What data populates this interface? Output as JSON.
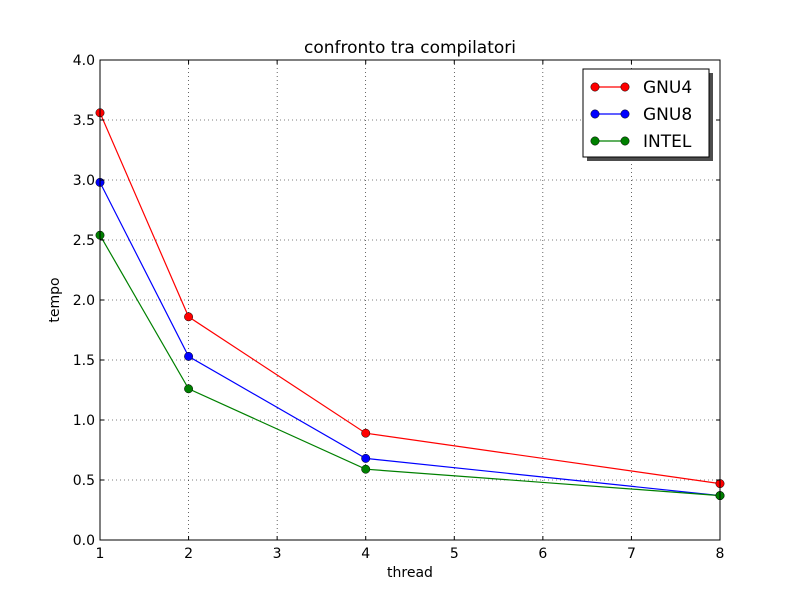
{
  "chart_data": {
    "type": "line",
    "title": "confronto tra compilatori",
    "xlabel": "thread",
    "ylabel": "tempo",
    "xlim": [
      1,
      8
    ],
    "ylim": [
      0,
      4
    ],
    "xticks": [
      1,
      2,
      3,
      4,
      5,
      6,
      7,
      8
    ],
    "xtick_labels": [
      "1",
      "2",
      "3",
      "4",
      "5",
      "6",
      "7",
      "8"
    ],
    "yticks": [
      0,
      0.5,
      1,
      1.5,
      2,
      2.5,
      3,
      3.5,
      4
    ],
    "ytick_labels": [
      "0.0",
      "0.5",
      "1.0",
      "1.5",
      "2.0",
      "2.5",
      "3.0",
      "3.5",
      "4.0"
    ],
    "grid": true,
    "legend_position": "top-right",
    "series": [
      {
        "name": "GNU4",
        "color": "#ff0000",
        "x": [
          1,
          2,
          4,
          8
        ],
        "y": [
          3.56,
          1.86,
          0.89,
          0.47
        ]
      },
      {
        "name": "GNU8",
        "color": "#0000ff",
        "x": [
          1,
          2,
          4,
          8
        ],
        "y": [
          2.98,
          1.53,
          0.68,
          0.37
        ]
      },
      {
        "name": "INTEL",
        "color": "#008000",
        "x": [
          1,
          2,
          4,
          8
        ],
        "y": [
          2.54,
          1.26,
          0.59,
          0.37
        ]
      }
    ]
  }
}
